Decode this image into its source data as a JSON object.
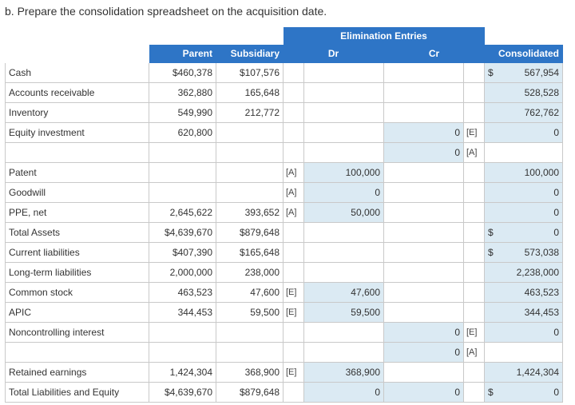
{
  "instruction": "b. Prepare the consolidation spreadsheet on the acquisition date.",
  "header": {
    "elimination": "Elimination Entries",
    "parent": "Parent",
    "subsidiary": "Subsidiary",
    "dr": "Dr",
    "cr": "Cr",
    "consolidated": "Consolidated"
  },
  "rows": [
    {
      "label": "Cash",
      "parent": "$460,378",
      "sub": "$107,576",
      "drtag": "",
      "dr": "",
      "cr": "",
      "crtag": "",
      "cons_dollar": "$",
      "cons": "567,954"
    },
    {
      "label": "Accounts receivable",
      "parent": "362,880",
      "sub": "165,648",
      "drtag": "",
      "dr": "",
      "cr": "",
      "crtag": "",
      "cons_dollar": "",
      "cons": "528,528"
    },
    {
      "label": "Inventory",
      "parent": "549,990",
      "sub": "212,772",
      "drtag": "",
      "dr": "",
      "cr": "",
      "crtag": "",
      "cons_dollar": "",
      "cons": "762,762"
    },
    {
      "label": "Equity investment",
      "parent": "620,800",
      "sub": "",
      "drtag": "",
      "dr": "",
      "cr": "0",
      "crtag": "[E]",
      "cons_dollar": "",
      "cons": "0"
    },
    {
      "label": "",
      "parent": "",
      "sub": "",
      "drtag": "",
      "dr": "",
      "cr": "0",
      "crtag": "[A]",
      "cons_dollar": "",
      "cons": ""
    },
    {
      "label": "Patent",
      "parent": "",
      "sub": "",
      "drtag": "[A]",
      "dr": "100,000",
      "cr": "",
      "crtag": "",
      "cons_dollar": "",
      "cons": "100,000"
    },
    {
      "label": "Goodwill",
      "parent": "",
      "sub": "",
      "drtag": "[A]",
      "dr": "0",
      "cr": "",
      "crtag": "",
      "cons_dollar": "",
      "cons": "0"
    },
    {
      "label": "PPE, net",
      "parent": "2,645,622",
      "sub": "393,652",
      "drtag": "[A]",
      "dr": "50,000",
      "cr": "",
      "crtag": "",
      "cons_dollar": "",
      "cons": "0"
    },
    {
      "label": "Total Assets",
      "parent": "$4,639,670",
      "sub": "$879,648",
      "drtag": "",
      "dr": "",
      "cr": "",
      "crtag": "",
      "cons_dollar": "$",
      "cons": "0"
    },
    {
      "label": "Current liabilities",
      "parent": "$407,390",
      "sub": "$165,648",
      "drtag": "",
      "dr": "",
      "cr": "",
      "crtag": "",
      "cons_dollar": "$",
      "cons": "573,038"
    },
    {
      "label": "Long-term liabilities",
      "parent": "2,000,000",
      "sub": "238,000",
      "drtag": "",
      "dr": "",
      "cr": "",
      "crtag": "",
      "cons_dollar": "",
      "cons": "2,238,000"
    },
    {
      "label": "Common stock",
      "parent": "463,523",
      "sub": "47,600",
      "drtag": "[E]",
      "dr": "47,600",
      "cr": "",
      "crtag": "",
      "cons_dollar": "",
      "cons": "463,523"
    },
    {
      "label": "APIC",
      "parent": "344,453",
      "sub": "59,500",
      "drtag": "[E]",
      "dr": "59,500",
      "cr": "",
      "crtag": "",
      "cons_dollar": "",
      "cons": "344,453"
    },
    {
      "label": "Noncontrolling interest",
      "parent": "",
      "sub": "",
      "drtag": "",
      "dr": "",
      "cr": "0",
      "crtag": "[E]",
      "cons_dollar": "",
      "cons": "0"
    },
    {
      "label": "",
      "parent": "",
      "sub": "",
      "drtag": "",
      "dr": "",
      "cr": "0",
      "crtag": "[A]",
      "cons_dollar": "",
      "cons": ""
    },
    {
      "label": "Retained earnings",
      "parent": "1,424,304",
      "sub": "368,900",
      "drtag": "[E]",
      "dr": "368,900",
      "cr": "",
      "crtag": "",
      "cons_dollar": "",
      "cons": "1,424,304"
    },
    {
      "label": "Total Liabilities and Equity",
      "parent": "$4,639,670",
      "sub": "$879,648",
      "drtag": "",
      "dr": "0",
      "cr": "0",
      "crtag": "",
      "cons_dollar": "$",
      "cons": "0"
    }
  ],
  "entry_cells": {
    "dr_rows": [
      5,
      6,
      7,
      11,
      12,
      15,
      16
    ],
    "cr_rows": [
      3,
      4,
      13,
      14,
      16
    ],
    "cons_rows": [
      0,
      1,
      2,
      3,
      5,
      6,
      7,
      8,
      9,
      10,
      11,
      12,
      13,
      15,
      16
    ]
  }
}
